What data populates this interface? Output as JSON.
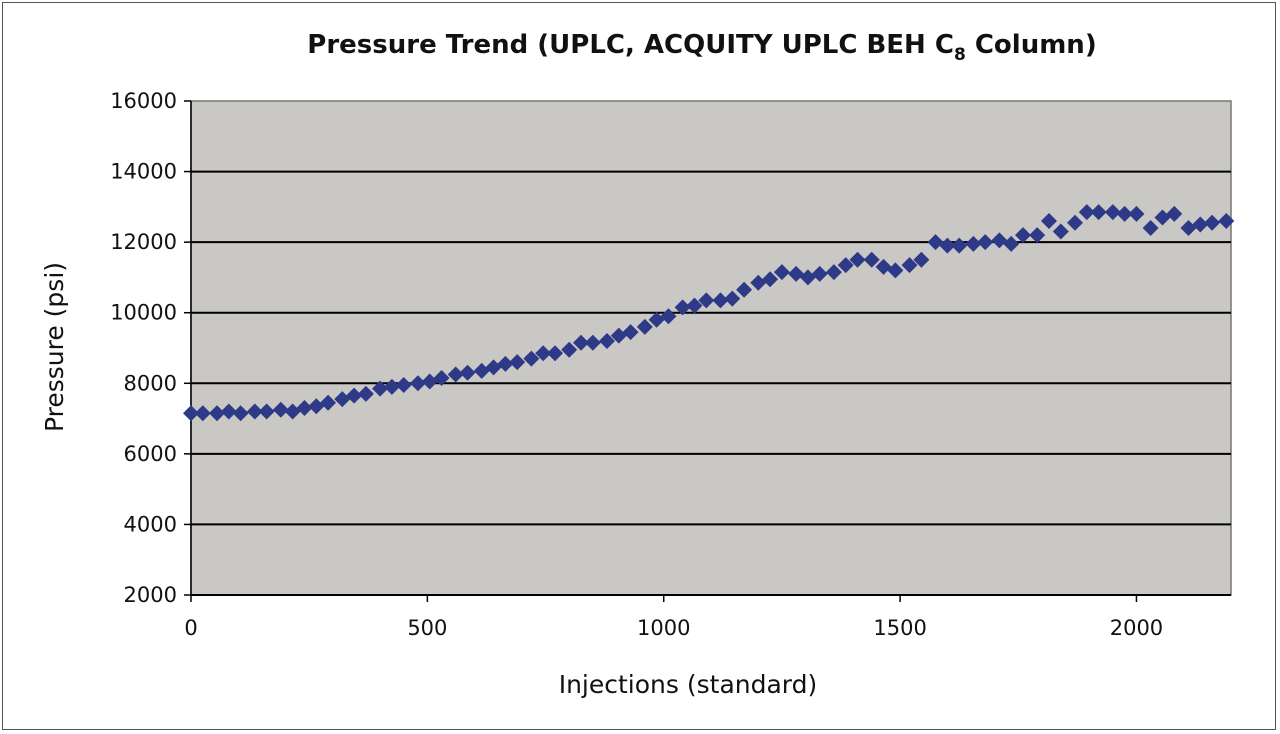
{
  "chart_data": {
    "type": "scatter",
    "title": "Pressure Trend (UPLC, ACQUITY UPLC BEH C",
    "title_subscript": "8",
    "title_suffix": " Column)",
    "xlabel": "Injections (standard)",
    "ylabel": "Pressure (psi)",
    "xlim": [
      0,
      2200
    ],
    "ylim": [
      2000,
      16000
    ],
    "x_ticks": [
      0,
      500,
      1000,
      1500,
      2000
    ],
    "y_ticks": [
      2000,
      4000,
      6000,
      8000,
      10000,
      12000,
      14000,
      16000
    ],
    "grid": true,
    "legend": "none",
    "colors": {
      "marker": "#2e3a87",
      "plot_background": "#c9c8c4",
      "gridline": "#000000"
    },
    "series": [
      {
        "points": [
          [
            0,
            7150
          ],
          [
            25,
            7150
          ],
          [
            55,
            7150
          ],
          [
            80,
            7200
          ],
          [
            105,
            7150
          ],
          [
            135,
            7200
          ],
          [
            160,
            7200
          ],
          [
            190,
            7250
          ],
          [
            215,
            7200
          ],
          [
            240,
            7300
          ],
          [
            265,
            7350
          ],
          [
            290,
            7450
          ],
          [
            320,
            7550
          ],
          [
            345,
            7650
          ],
          [
            370,
            7700
          ],
          [
            400,
            7850
          ],
          [
            425,
            7900
          ],
          [
            450,
            7950
          ],
          [
            480,
            8000
          ],
          [
            505,
            8050
          ],
          [
            530,
            8150
          ],
          [
            560,
            8250
          ],
          [
            585,
            8300
          ],
          [
            615,
            8350
          ],
          [
            640,
            8450
          ],
          [
            665,
            8550
          ],
          [
            690,
            8600
          ],
          [
            720,
            8700
          ],
          [
            745,
            8850
          ],
          [
            770,
            8850
          ],
          [
            800,
            8950
          ],
          [
            825,
            9150
          ],
          [
            850,
            9150
          ],
          [
            880,
            9200
          ],
          [
            905,
            9350
          ],
          [
            930,
            9450
          ],
          [
            960,
            9600
          ],
          [
            985,
            9800
          ],
          [
            1010,
            9900
          ],
          [
            1040,
            10150
          ],
          [
            1065,
            10200
          ],
          [
            1090,
            10350
          ],
          [
            1120,
            10350
          ],
          [
            1145,
            10400
          ],
          [
            1170,
            10650
          ],
          [
            1200,
            10850
          ],
          [
            1225,
            10950
          ],
          [
            1250,
            11150
          ],
          [
            1280,
            11100
          ],
          [
            1305,
            11000
          ],
          [
            1330,
            11100
          ],
          [
            1360,
            11150
          ],
          [
            1385,
            11350
          ],
          [
            1410,
            11500
          ],
          [
            1440,
            11500
          ],
          [
            1465,
            11300
          ],
          [
            1490,
            11200
          ],
          [
            1520,
            11350
          ],
          [
            1545,
            11500
          ],
          [
            1575,
            12000
          ],
          [
            1600,
            11900
          ],
          [
            1625,
            11900
          ],
          [
            1655,
            11950
          ],
          [
            1680,
            12000
          ],
          [
            1710,
            12050
          ],
          [
            1735,
            11950
          ],
          [
            1760,
            12200
          ],
          [
            1790,
            12200
          ],
          [
            1815,
            12600
          ],
          [
            1840,
            12300
          ],
          [
            1870,
            12550
          ],
          [
            1895,
            12850
          ],
          [
            1920,
            12850
          ],
          [
            1950,
            12850
          ],
          [
            1975,
            12800
          ],
          [
            2000,
            12800
          ],
          [
            2030,
            12400
          ],
          [
            2055,
            12700
          ],
          [
            2080,
            12800
          ],
          [
            2110,
            12400
          ],
          [
            2135,
            12500
          ],
          [
            2160,
            12550
          ],
          [
            2190,
            12600
          ]
        ]
      }
    ]
  }
}
